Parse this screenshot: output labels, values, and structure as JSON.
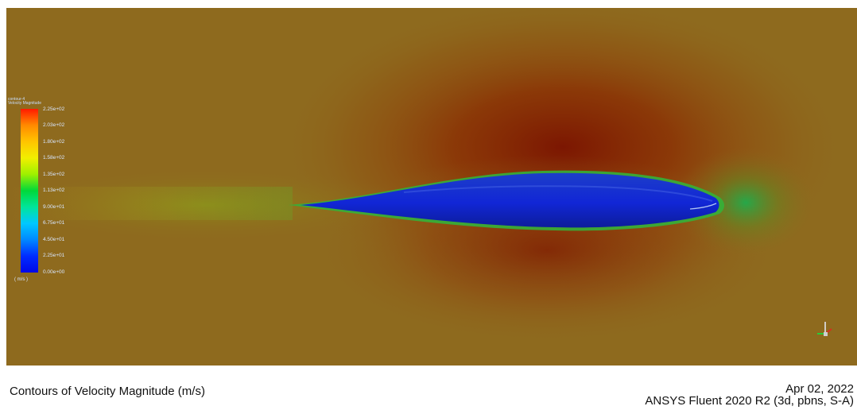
{
  "legend": {
    "name": "contour-4",
    "quantity": "Velocity Magnitude",
    "unit": "( m/s )",
    "ticks": [
      "2.25e+02",
      "2.03e+02",
      "1.80e+02",
      "1.58e+02",
      "1.35e+02",
      "1.13e+02",
      "9.00e+01",
      "6.75e+01",
      "4.50e+01",
      "2.25e+01",
      "0.00e+00"
    ],
    "colors": [
      "#ff1a00",
      "#ff8a00",
      "#ffc400",
      "#f2ef00",
      "#9ef000",
      "#00d83a",
      "#00e59a",
      "#00c8ff",
      "#0088ff",
      "#002cff",
      "#0008e8"
    ]
  },
  "footer": {
    "title": "Contours of Velocity Magnitude (m/s)",
    "date": "Apr 02, 2022",
    "software": "ANSYS Fluent 2020 R2 (3d, pbns, S-A)"
  },
  "icons": {
    "axis_triad": "axis-triad-icon"
  }
}
